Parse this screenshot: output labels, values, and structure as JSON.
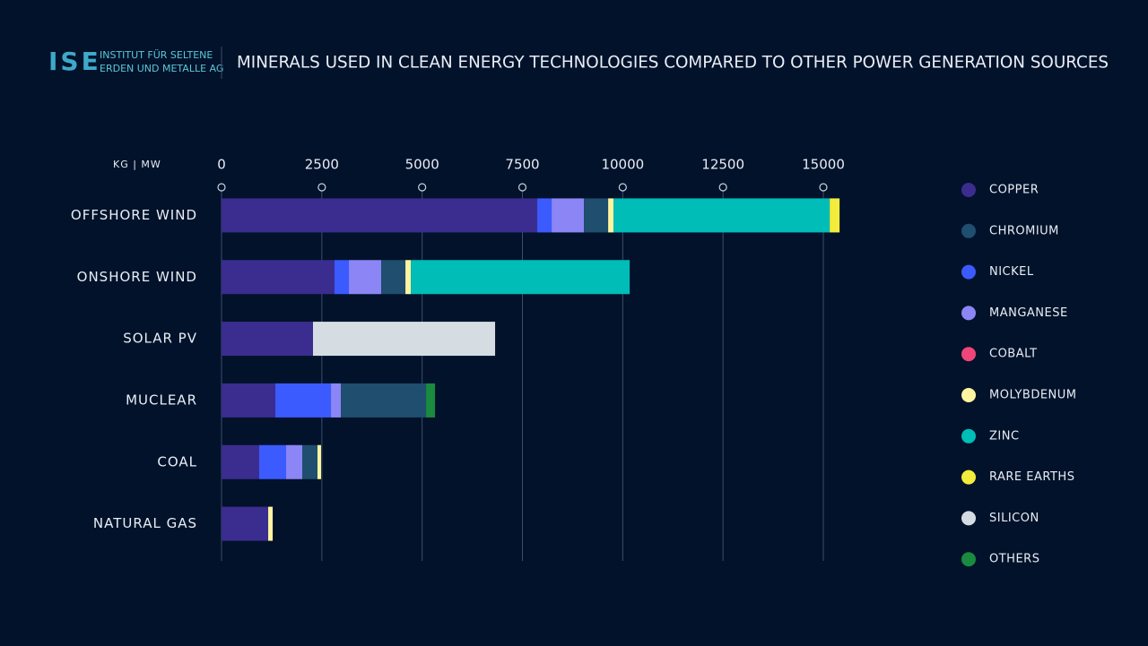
{
  "brand": {
    "mark": "ISE",
    "line1": "INSTITUT FÜR SELTENE",
    "line2": "ERDEN UND METALLE AG"
  },
  "chart_data": {
    "type": "stacked-bar-horizontal",
    "title": "MINERALS USED IN CLEAN ENERGY TECHNOLOGIES COMPARED TO OTHER POWER GENERATION SOURCES",
    "x_axis_label": "KG | MW",
    "categories": [
      "OFFSHORE WIND",
      "ONSHORE WIND",
      "SOLAR PV",
      "MUCLEAR",
      "COAL",
      "NATURAL GAS"
    ],
    "xlim": [
      0,
      15000
    ],
    "xticks": [
      0,
      2500,
      5000,
      7500,
      10000,
      12500,
      15000
    ],
    "grid": true,
    "stack_order": [
      0,
      2,
      3,
      1,
      4,
      5,
      6,
      7,
      8,
      9
    ],
    "series": [
      {
        "name": "COPPER",
        "color": "#3b2d8f",
        "values": [
          7870,
          2817,
          2280,
          1342,
          939,
          1163
        ]
      },
      {
        "name": "CHROMIUM",
        "color": "#1f4e6e",
        "values": [
          604,
          604,
          null,
          2124,
          380,
          null
        ]
      },
      {
        "name": "NICKEL",
        "color": "#3b5bff",
        "values": [
          358,
          358,
          null,
          1386,
          671,
          null
        ]
      },
      {
        "name": "MANGANESE",
        "color": "#8b85f5",
        "values": [
          805,
          805,
          null,
          246,
          402,
          null
        ]
      },
      {
        "name": "COBALT",
        "color": "#f0457a",
        "values": [
          null,
          null,
          null,
          null,
          null,
          null
        ]
      },
      {
        "name": "MOLYBDENUM",
        "color": "#fff5a0",
        "values": [
          134,
          134,
          null,
          null,
          89,
          112
        ]
      },
      {
        "name": "ZINC",
        "color": "#00bdb8",
        "values": [
          5388,
          5455,
          null,
          null,
          null,
          null
        ]
      },
      {
        "name": "RARE EARTHS",
        "color": "#f2ec3c",
        "values": [
          246,
          null,
          null,
          null,
          null,
          null
        ]
      },
      {
        "name": "SILICON",
        "color": "#d5dde3",
        "values": [
          null,
          null,
          4539,
          null,
          null,
          null
        ]
      },
      {
        "name": "OTHERS",
        "color": "#1a8a3e",
        "values": [
          null,
          null,
          null,
          224,
          null,
          null
        ]
      }
    ]
  }
}
